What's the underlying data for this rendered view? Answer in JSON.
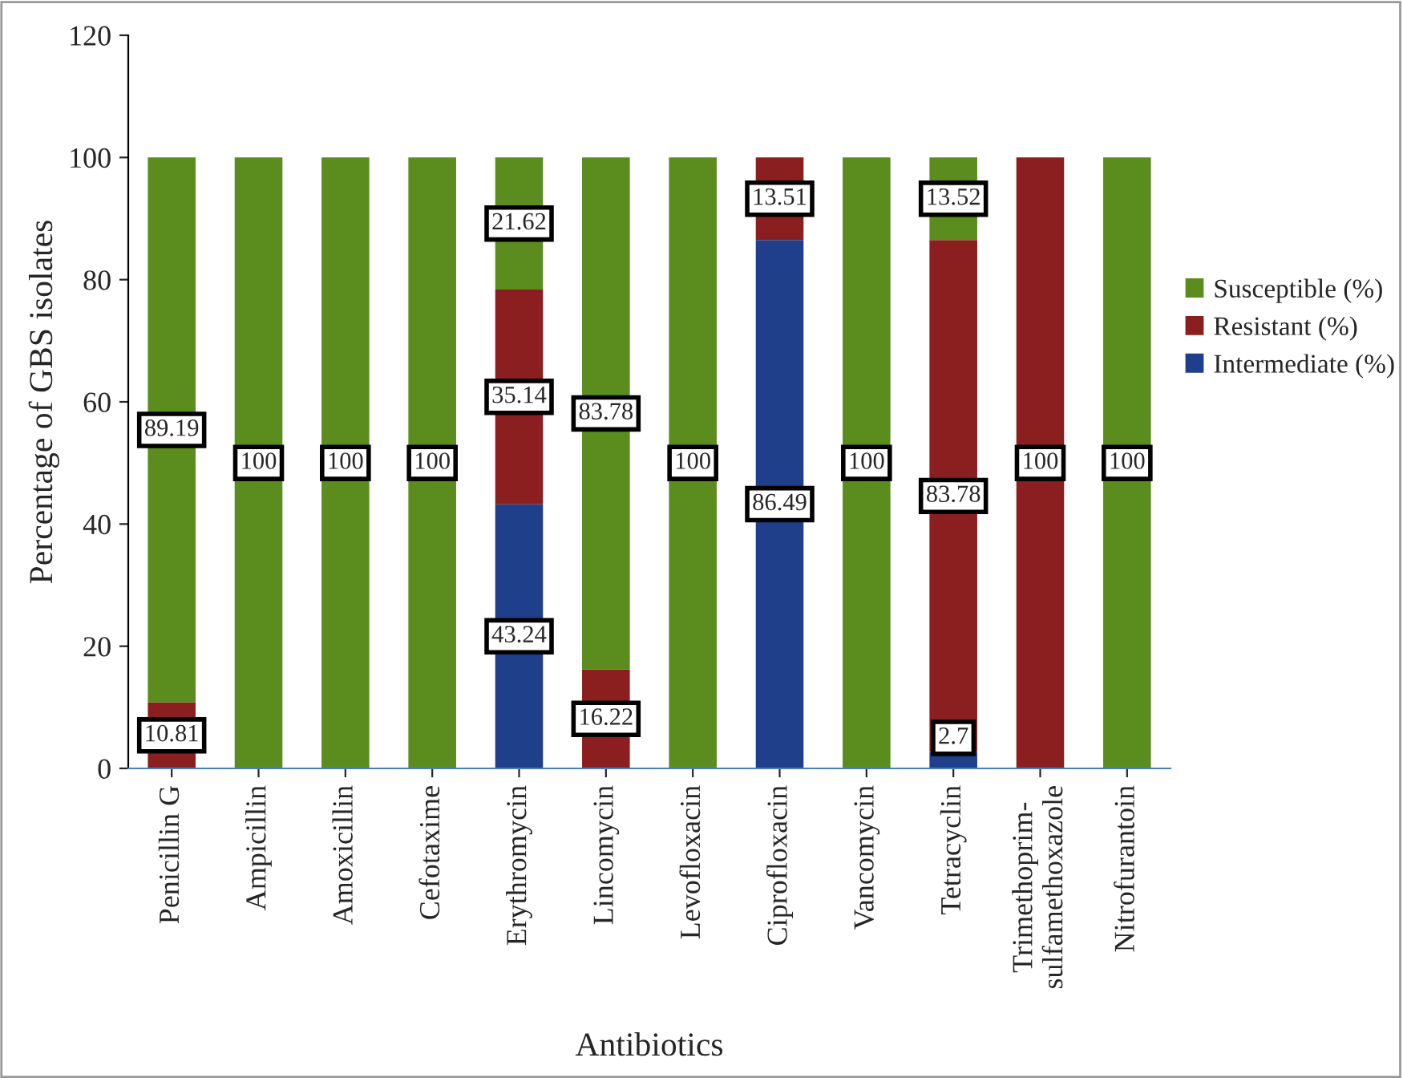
{
  "chart_data": {
    "type": "bar",
    "stacked": true,
    "xlabel": "Antibiotics",
    "ylabel": "Percentage of GBS isolates",
    "categories": [
      "Penicillin G",
      "Ampicillin",
      "Amoxicillin",
      "Cefotaxime",
      "Erythromycin",
      "Lincomycin",
      "Levofloxacin",
      "Ciprofloxacin",
      "Vancomycin",
      "Tetracyclin",
      "Trimethoprim-\nsulfamethoxazole",
      "Nitrofurantoin"
    ],
    "series": [
      {
        "name": "Intermediate (%)",
        "color": "#1f3f8b",
        "values": [
          null,
          null,
          null,
          null,
          43.24,
          null,
          null,
          86.49,
          null,
          2.7,
          null,
          null
        ]
      },
      {
        "name": "Resistant (%)",
        "color": "#8b1f1f",
        "values": [
          10.81,
          null,
          null,
          null,
          35.14,
          16.22,
          null,
          13.51,
          null,
          83.78,
          100,
          null
        ]
      },
      {
        "name": "Susceptible (%)",
        "color": "#5b8c1e",
        "values": [
          89.19,
          100,
          100,
          100,
          21.62,
          83.78,
          100,
          null,
          100,
          13.52,
          null,
          100
        ]
      }
    ],
    "ylim": [
      0,
      120
    ],
    "yticks": [
      0,
      20,
      40,
      60,
      80,
      100,
      120
    ],
    "data_labels": true,
    "legend": "right",
    "grid": false
  }
}
